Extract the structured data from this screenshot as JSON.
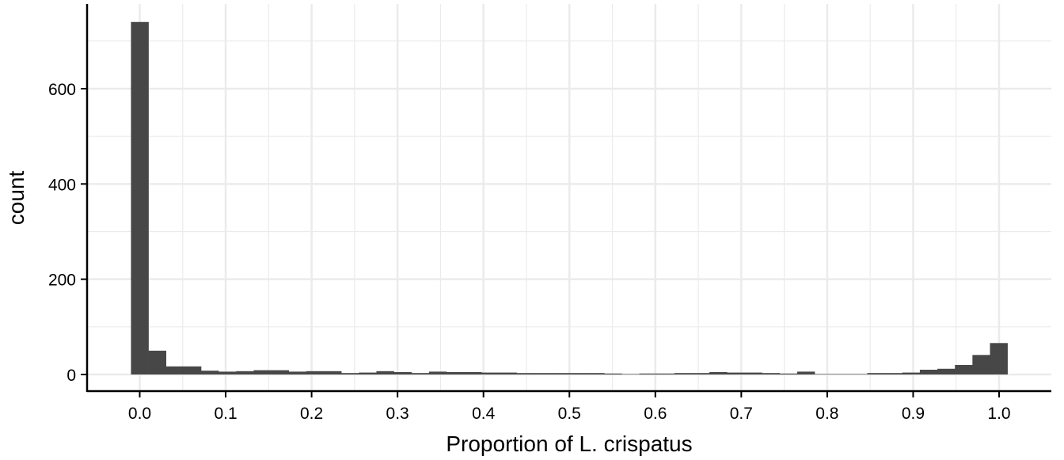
{
  "chart_data": {
    "type": "bar",
    "subtype": "histogram",
    "xlabel": "Proportion of L. crispatus",
    "ylabel": "count",
    "xlim": [
      -0.05,
      1.06
    ],
    "ylim": [
      0,
      740
    ],
    "x_ticks": [
      0.0,
      0.1,
      0.2,
      0.3,
      0.4,
      0.5,
      0.6,
      0.7,
      0.8,
      0.9,
      1.0
    ],
    "x_tick_labels": [
      "0.0",
      "0.1",
      "0.2",
      "0.3",
      "0.4",
      "0.5",
      "0.6",
      "0.7",
      "0.8",
      "0.9",
      "1.0"
    ],
    "y_ticks": [
      0,
      200,
      400,
      600
    ],
    "y_tick_labels": [
      "0",
      "200",
      "400",
      "600"
    ],
    "bin_width": 0.0204,
    "bin_start": -0.0102,
    "values": [
      740,
      50,
      17,
      17,
      8,
      6,
      7,
      9,
      9,
      6,
      7,
      7,
      3,
      4,
      7,
      5,
      3,
      6,
      5,
      5,
      4,
      4,
      3,
      3,
      3,
      3,
      3,
      2,
      1,
      2,
      2,
      3,
      3,
      5,
      4,
      4,
      3,
      2,
      6,
      1,
      1,
      1,
      3,
      3,
      4,
      10,
      12,
      20,
      41,
      66
    ],
    "bar_color": "#474747",
    "grid": true,
    "grid_color": "#ebebeb",
    "legend": "none"
  }
}
